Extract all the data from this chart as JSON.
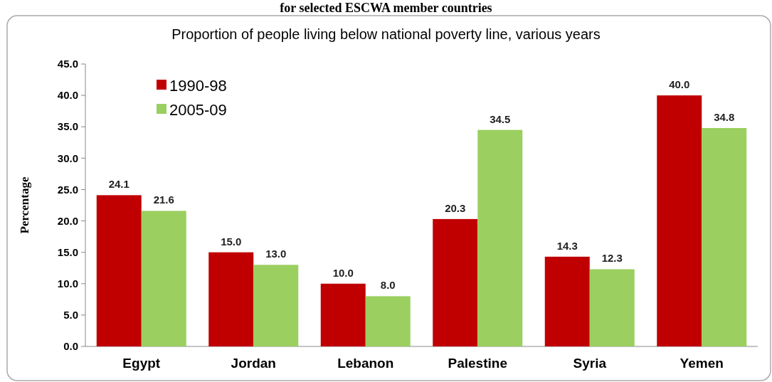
{
  "chart_data": {
    "type": "bar",
    "subtitle": "for selected ESCWA member countries",
    "title": "Proportion of people living below national poverty line, various years",
    "ylabel": "Percentage",
    "categories": [
      "Egypt",
      "Jordan",
      "Lebanon",
      "Palestine",
      "Syria",
      "Yemen"
    ],
    "series": [
      {
        "name": "1990-98",
        "color": "#c00000",
        "values": [
          24.1,
          15.0,
          10.0,
          20.3,
          14.3,
          40.0
        ],
        "value_labels": [
          "24.1",
          "15.0",
          "10.0",
          "20.3",
          "14.3",
          "40.0"
        ]
      },
      {
        "name": "2005-09",
        "color": "#9bcf5f",
        "values": [
          21.6,
          13.0,
          8.0,
          34.5,
          12.3,
          34.8
        ],
        "value_labels": [
          "21.6",
          "13.0",
          "8.0",
          "34.5",
          "12.3",
          "34.8"
        ]
      }
    ],
    "ylim": [
      0,
      45
    ],
    "yticks": [
      {
        "value": 0,
        "label": "0.0"
      },
      {
        "value": 5,
        "label": "5.0"
      },
      {
        "value": 10,
        "label": "10.0"
      },
      {
        "value": 15,
        "label": "15.0"
      },
      {
        "value": 20,
        "label": "20.0"
      },
      {
        "value": 25,
        "label": "25.0"
      },
      {
        "value": 30,
        "label": "30.0"
      },
      {
        "value": 35,
        "label": "35.0"
      },
      {
        "value": 40,
        "label": "40.0"
      },
      {
        "value": 45,
        "label": "45.0"
      }
    ],
    "legend": "top left"
  }
}
